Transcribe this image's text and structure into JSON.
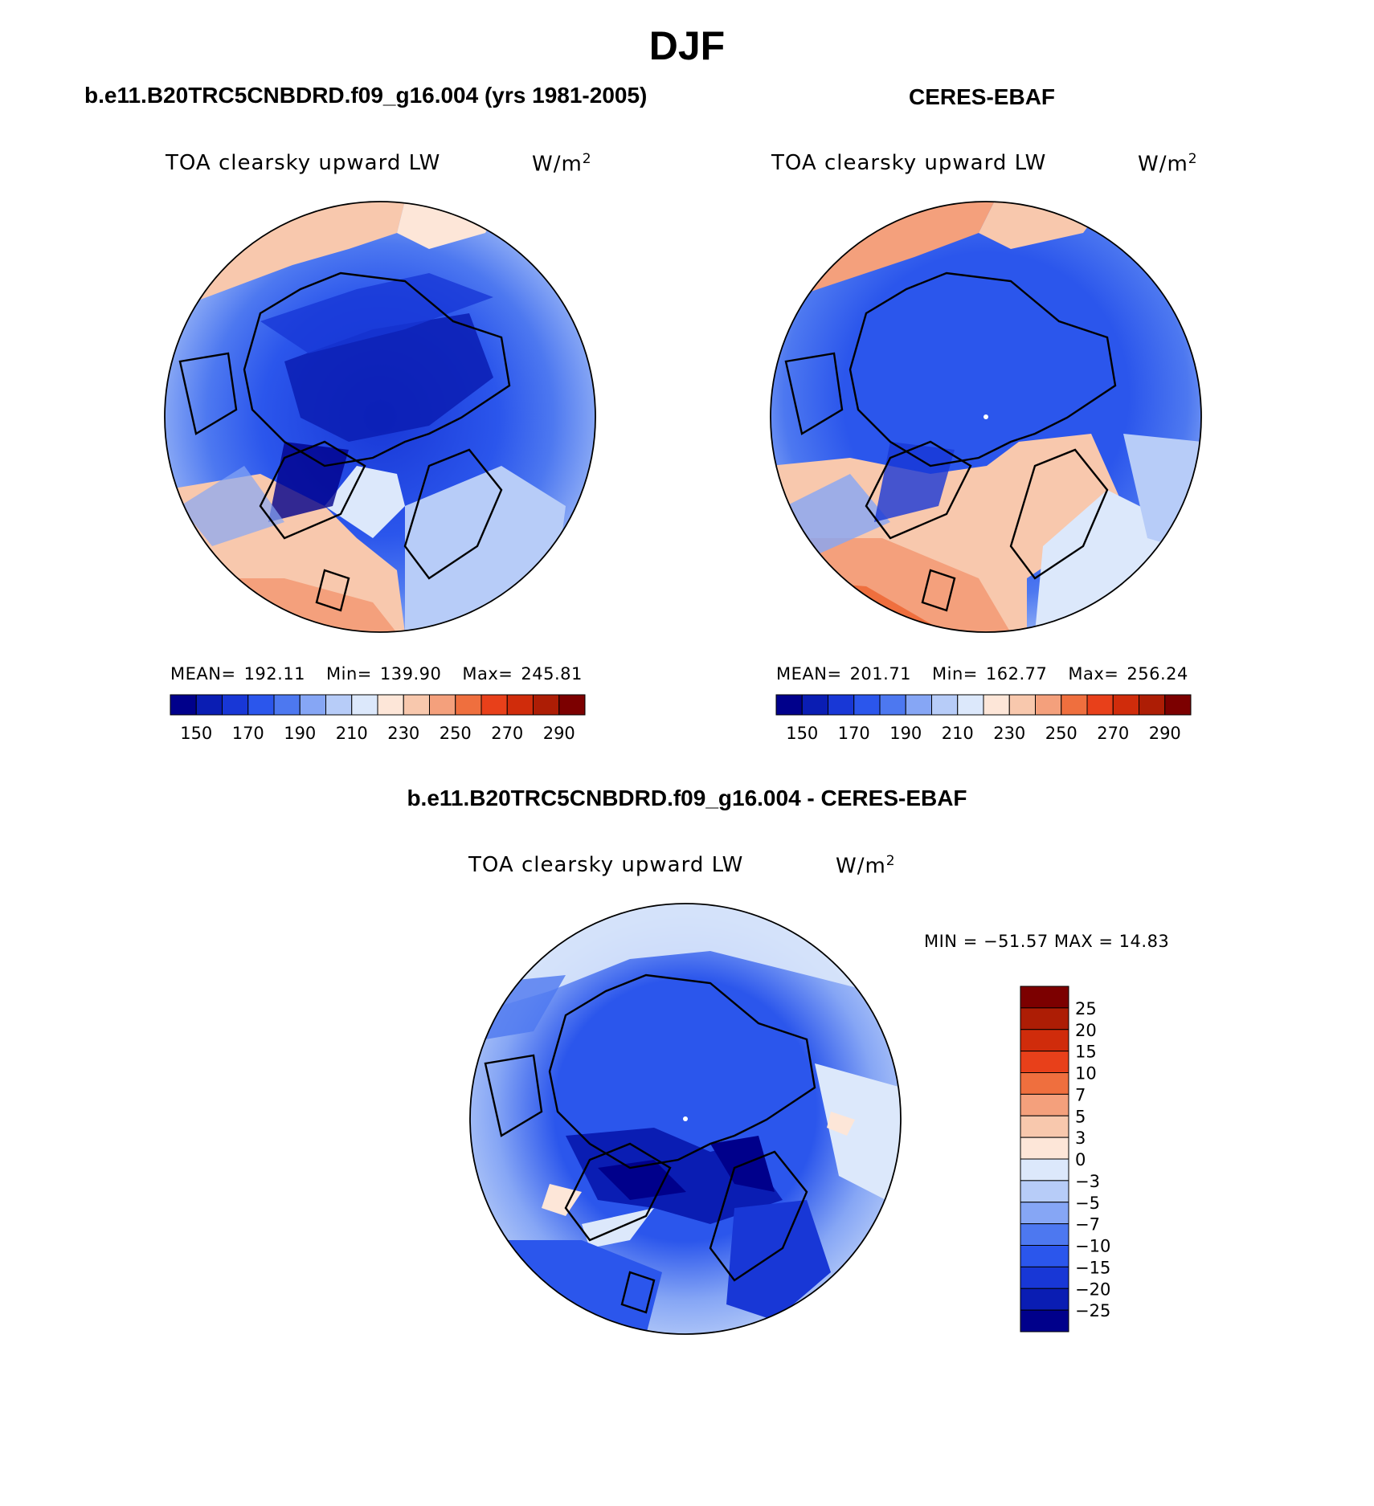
{
  "season": "DJF",
  "panels": [
    {
      "title": "b.e11.B20TRC5CNBDRD.f09_g16.004 (yrs 1981-2005)",
      "label": "TOA clearsky upward LW",
      "units": "W/m",
      "units_exp": "2",
      "mean_label": "MEAN=",
      "mean": "192.11",
      "min_label": "Min=",
      "min": "139.90",
      "max_label": "Max=",
      "max": "245.81"
    },
    {
      "title": "CERES-EBAF",
      "label": "TOA clearsky upward LW",
      "units": "W/m",
      "units_exp": "2",
      "mean_label": "MEAN=",
      "mean": "201.71",
      "min_label": "Min=",
      "min": "162.77",
      "max_label": "Max=",
      "max": "256.24"
    }
  ],
  "diff_panel": {
    "title": "b.e11.B20TRC5CNBDRD.f09_g16.004 - CERES-EBAF",
    "label": "TOA clearsky upward LW",
    "units": "W/m",
    "units_exp": "2",
    "min_max": "MIN = −51.57 MAX =   14.83"
  },
  "abs_colorbar": {
    "colors": [
      "#00008b",
      "#0a1db3",
      "#1837d6",
      "#2b56ec",
      "#4d78f0",
      "#86a6f5",
      "#b7ccf8",
      "#dce8fb",
      "#fde6d8",
      "#f8c8ad",
      "#f4a07c",
      "#ef6f3e",
      "#e8401a",
      "#d02c0b",
      "#ad1d05",
      "#7c0000"
    ],
    "tick_labels": [
      "150",
      "170",
      "190",
      "210",
      "230",
      "250",
      "270",
      "290"
    ]
  },
  "diff_colorbar": {
    "colors": [
      "#7c0000",
      "#ad1d05",
      "#d02c0b",
      "#e8401a",
      "#ef6f3e",
      "#f4a07c",
      "#f8c8ad",
      "#fde6d8",
      "#dce8fb",
      "#b7ccf8",
      "#86a6f5",
      "#4d78f0",
      "#2b56ec",
      "#1837d6",
      "#0a1db3",
      "#00008b"
    ],
    "tick_labels": [
      "25",
      "20",
      "15",
      "10",
      "7",
      "5",
      "3",
      "0",
      "−3",
      "−5",
      "−7",
      "−10",
      "−15",
      "−20",
      "−25"
    ]
  }
}
